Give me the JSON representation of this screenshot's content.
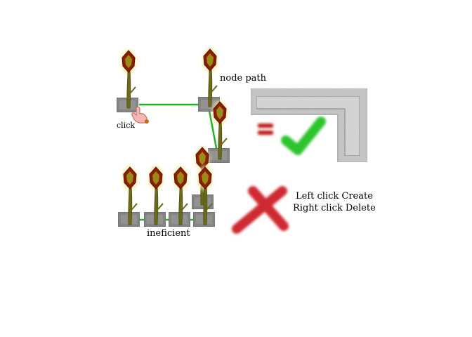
{
  "labels": {
    "node_path": "node path",
    "click": "click",
    "ineficient": "ineficient",
    "left_click": "Left click Create",
    "right_click": "Right click Delete"
  },
  "icons": {
    "plant": "torch-plant-icon",
    "stone": "stone-block-icon",
    "cursor": "hand-cursor-icon",
    "equals": "equals-icon",
    "check": "checkmark-icon",
    "cross": "cross-icon",
    "path": "stone-path-icon"
  },
  "colors": {
    "link": "#22b322",
    "stone": "#8c8c8c",
    "stem": "#6b6a1a",
    "bulb_outer": "#8a1e06",
    "bulb_inner": "#9b8a14",
    "check": "#2fc42f",
    "cross": "#cf2b32",
    "equals": "#c01818"
  }
}
